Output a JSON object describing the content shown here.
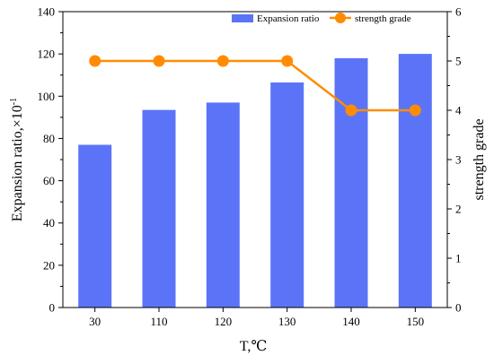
{
  "chart_data": {
    "type": "bar+line",
    "categories": [
      "30",
      "110",
      "120",
      "130",
      "140",
      "150"
    ],
    "series": [
      {
        "name": "Expansion ratio",
        "type": "bar",
        "axis": "left",
        "values": [
          77,
          93.5,
          97,
          106.5,
          118,
          120
        ],
        "color": "#5b74f7"
      },
      {
        "name": "strength grade",
        "type": "line",
        "axis": "right",
        "values": [
          5,
          5,
          5,
          5,
          4,
          4
        ],
        "color": "#ff8c00"
      }
    ],
    "xlabel": "T,℃",
    "ylabel_left_prefix": "Expansion ratio,×10",
    "ylabel_left_sup": "-1",
    "ylabel_right": "strength grade",
    "ylim_left": [
      0,
      140
    ],
    "ylim_right": [
      0,
      6
    ],
    "yticks_left": [
      "0",
      "20",
      "40",
      "60",
      "80",
      "100",
      "120",
      "140"
    ],
    "yticks_right": [
      "0",
      "1",
      "2",
      "3",
      "4",
      "5",
      "6"
    ],
    "legend_placement": "top-right",
    "grid": false
  }
}
